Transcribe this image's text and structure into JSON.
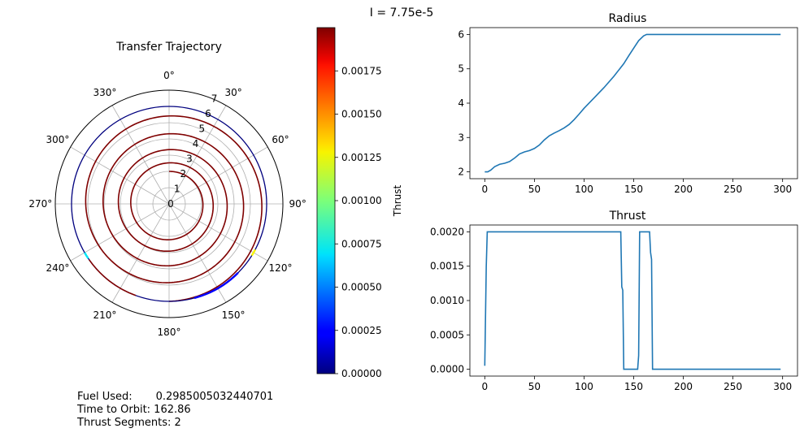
{
  "figure": {
    "suptitle": "I = 7.75e-5",
    "info_lines": [
      "Fuel Used:       0.2985005032440701",
      "Time to Orbit: 162.86",
      "Thrust Segments: 2"
    ]
  },
  "chart_data": [
    {
      "type": "polar-line",
      "title": "Transfer Trajectory",
      "theta_zero_location": "N",
      "theta_direction": "clockwise",
      "theta_ticks_deg": [
        0,
        30,
        60,
        90,
        120,
        150,
        180,
        210,
        240,
        270,
        300,
        330
      ],
      "theta_tick_labels": [
        "0°",
        "30°",
        "60°",
        "90°",
        "120°",
        "150°",
        "180°",
        "210°",
        "240°",
        "270°",
        "300°",
        "330°"
      ],
      "r_ticks": [
        0,
        1,
        2,
        3,
        4,
        5,
        6,
        7
      ],
      "r_tick_labels": [
        "0",
        "1",
        "2",
        "3",
        "4",
        "5",
        "6",
        "7"
      ],
      "rlim": [
        0,
        7
      ],
      "grid": true,
      "color_encodes": "Thrust",
      "trajectory": {
        "r_start": 2.0,
        "r_end": 6.0,
        "revolutions_spiral": 4.5,
        "final_orbit_radius": 6.0
      }
    },
    {
      "type": "colorbar",
      "label": "Thrust",
      "colormap": "jet",
      "range": [
        0.0,
        0.002
      ],
      "ticks": [
        0.0,
        0.00025,
        0.0005,
        0.00075,
        0.001,
        0.00125,
        0.0015,
        0.00175
      ],
      "tick_labels": [
        "0.00000",
        "0.00025",
        "0.00050",
        "0.00075",
        "0.00100",
        "0.00125",
        "0.00150",
        "0.00175"
      ]
    },
    {
      "type": "line",
      "title": "Radius",
      "xlim": [
        -15,
        315
      ],
      "ylim": [
        1.8,
        6.2
      ],
      "xticks": [
        0,
        50,
        100,
        150,
        200,
        250,
        300
      ],
      "xtick_labels": [
        "0",
        "50",
        "100",
        "150",
        "200",
        "250",
        "300"
      ],
      "yticks": [
        2,
        3,
        4,
        5,
        6
      ],
      "ytick_labels": [
        "2",
        "3",
        "4",
        "5",
        "6"
      ],
      "color": "#1f77b4",
      "x": [
        0,
        3,
        6,
        10,
        15,
        20,
        25,
        30,
        35,
        40,
        45,
        50,
        55,
        60,
        65,
        70,
        75,
        80,
        85,
        90,
        95,
        100,
        110,
        120,
        130,
        140,
        145,
        150,
        155,
        160,
        163,
        170,
        200,
        250,
        298
      ],
      "y": [
        2.0,
        2.0,
        2.05,
        2.15,
        2.22,
        2.25,
        2.3,
        2.4,
        2.52,
        2.58,
        2.62,
        2.68,
        2.78,
        2.93,
        3.05,
        3.13,
        3.2,
        3.28,
        3.38,
        3.52,
        3.68,
        3.85,
        4.15,
        4.45,
        4.78,
        5.15,
        5.38,
        5.6,
        5.82,
        5.96,
        6.0,
        6.0,
        6.0,
        6.0,
        6.0
      ]
    },
    {
      "type": "line",
      "title": "Thrust",
      "xlim": [
        -15,
        315
      ],
      "ylim": [
        -0.0001,
        0.0021
      ],
      "xticks": [
        0,
        50,
        100,
        150,
        200,
        250,
        300
      ],
      "xtick_labels": [
        "0",
        "50",
        "100",
        "150",
        "200",
        "250",
        "300"
      ],
      "yticks": [
        0.0,
        0.0005,
        0.001,
        0.0015,
        0.002
      ],
      "ytick_labels": [
        "0.0000",
        "0.0005",
        "0.0010",
        "0.0015",
        "0.0020"
      ],
      "color": "#1f77b4",
      "x": [
        0,
        1.5,
        2.5,
        137,
        138,
        139,
        140,
        154,
        155,
        156,
        157,
        163,
        166,
        167,
        168,
        169,
        298
      ],
      "y": [
        5e-05,
        0.0015,
        0.002,
        0.002,
        0.0012,
        0.00115,
        0.0,
        0.0,
        0.0002,
        0.002,
        0.002,
        0.002,
        0.002,
        0.0017,
        0.0016,
        0.0,
        0.0
      ]
    }
  ]
}
